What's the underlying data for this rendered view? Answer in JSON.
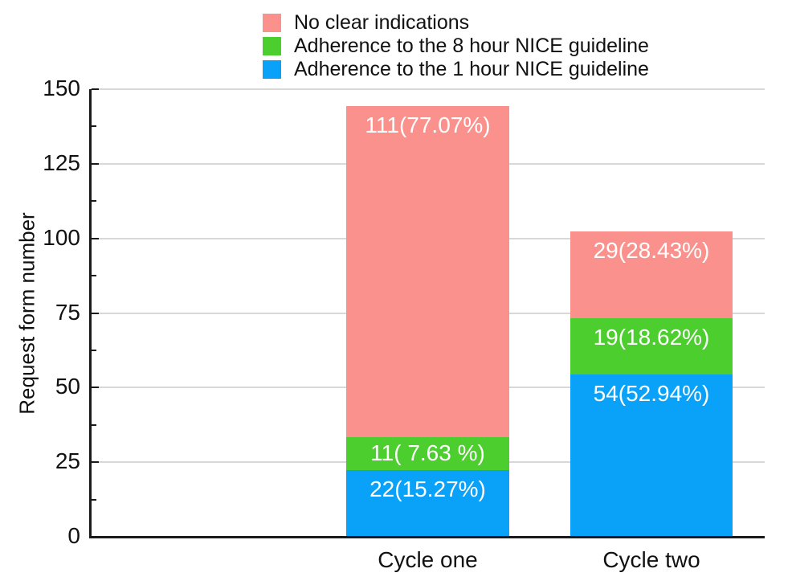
{
  "chart_data": {
    "type": "bar",
    "stacked": true,
    "categories": [
      "Cycle one",
      "Cycle two"
    ],
    "series": [
      {
        "name": "Adherence to the 1 hour NICE guideline",
        "color": "#0AA2F8",
        "values": [
          22,
          54
        ],
        "labels": [
          "22(15.27%)",
          "54(52.94%)"
        ]
      },
      {
        "name": "Adherence to the 8 hour NICE guideline",
        "color": "#4DCE2F",
        "values": [
          11,
          19
        ],
        "labels": [
          "11( 7.63 %)",
          "19(18.62%)"
        ]
      },
      {
        "name": "No clear indications",
        "color": "#FB918C",
        "values": [
          111,
          29
        ],
        "labels": [
          "111(77.07%)",
          "29(28.43%)"
        ]
      }
    ],
    "stack_order": "bottom-up",
    "totals": [
      144,
      102
    ],
    "xlabel": "",
    "ylabel": "Request form number",
    "ylim": [
      0,
      150
    ],
    "yticks": [
      0,
      25,
      50,
      75,
      100,
      125,
      150
    ],
    "minor_yticks": [
      12.5,
      37.5,
      62.5,
      87.5,
      112.5,
      137.5
    ],
    "grid": true,
    "legend_position": "top-center",
    "value_label_color": "#FFFFFF"
  },
  "legend": {
    "items": [
      {
        "label": "No clear indications",
        "color": "#FB918C"
      },
      {
        "label": "Adherence to the 8 hour NICE guideline",
        "color": "#4DCE2F"
      },
      {
        "label": "Adherence to the 1 hour NICE guideline",
        "color": "#0AA2F8"
      }
    ]
  },
  "colors": {
    "background": "#FFFFFF",
    "gridline": "#D8D8D8",
    "axis": "#1A1A1A",
    "tick_label_text": "#111111",
    "bar_label_text": "#FFFFFF"
  }
}
